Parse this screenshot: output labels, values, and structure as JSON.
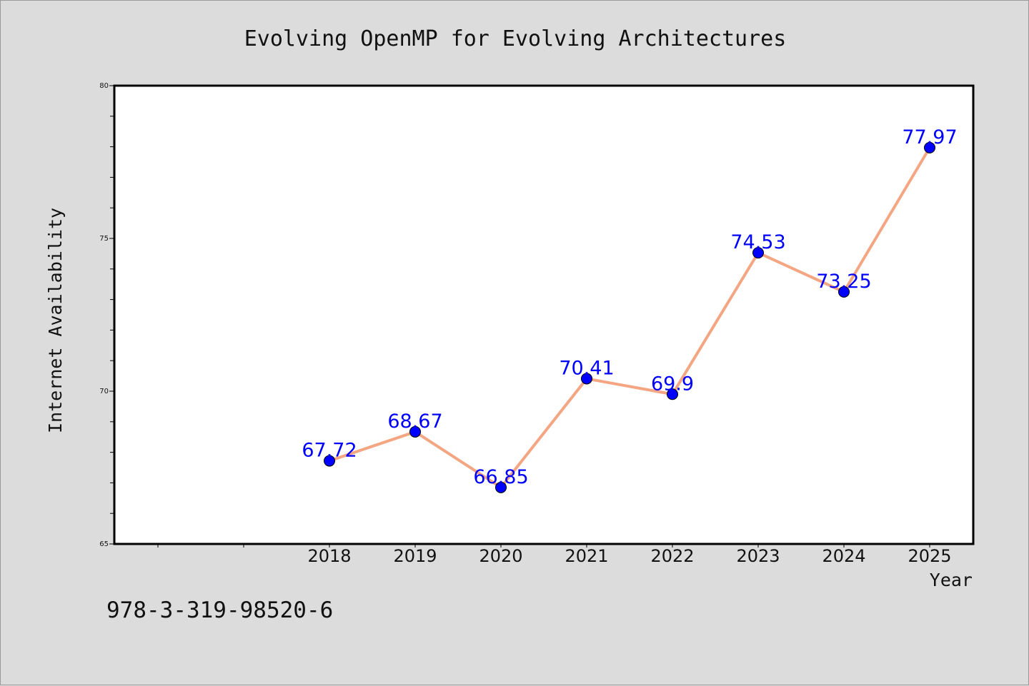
{
  "chart_data": {
    "type": "line",
    "title": "Evolving OpenMP for Evolving Architectures",
    "xlabel": "Year",
    "ylabel": "Internet Availability",
    "x": [
      "2018",
      "2019",
      "2020",
      "2021",
      "2022",
      "2023",
      "2024",
      "2025"
    ],
    "series": [
      {
        "values": [
          67.72,
          68.67,
          66.85,
          70.41,
          69.9,
          74.53,
          73.25,
          77.97
        ],
        "data_labels": [
          "67.72",
          "68.67",
          "66.85",
          "70.41",
          "69.9",
          "74.53",
          "73.25",
          "77.97"
        ],
        "line_color": "#f4a582",
        "marker_color": "#0000ff"
      }
    ],
    "yticks": [
      "65",
      "70",
      "75",
      "80"
    ],
    "ylim": [
      65,
      80
    ],
    "grid": false,
    "data_label_color": "#0000ff"
  },
  "caption": "978-3-319-98520-6",
  "colors": {
    "background": "#dcdcdc",
    "plot_area": "#ffffff",
    "axis": "#000000"
  }
}
